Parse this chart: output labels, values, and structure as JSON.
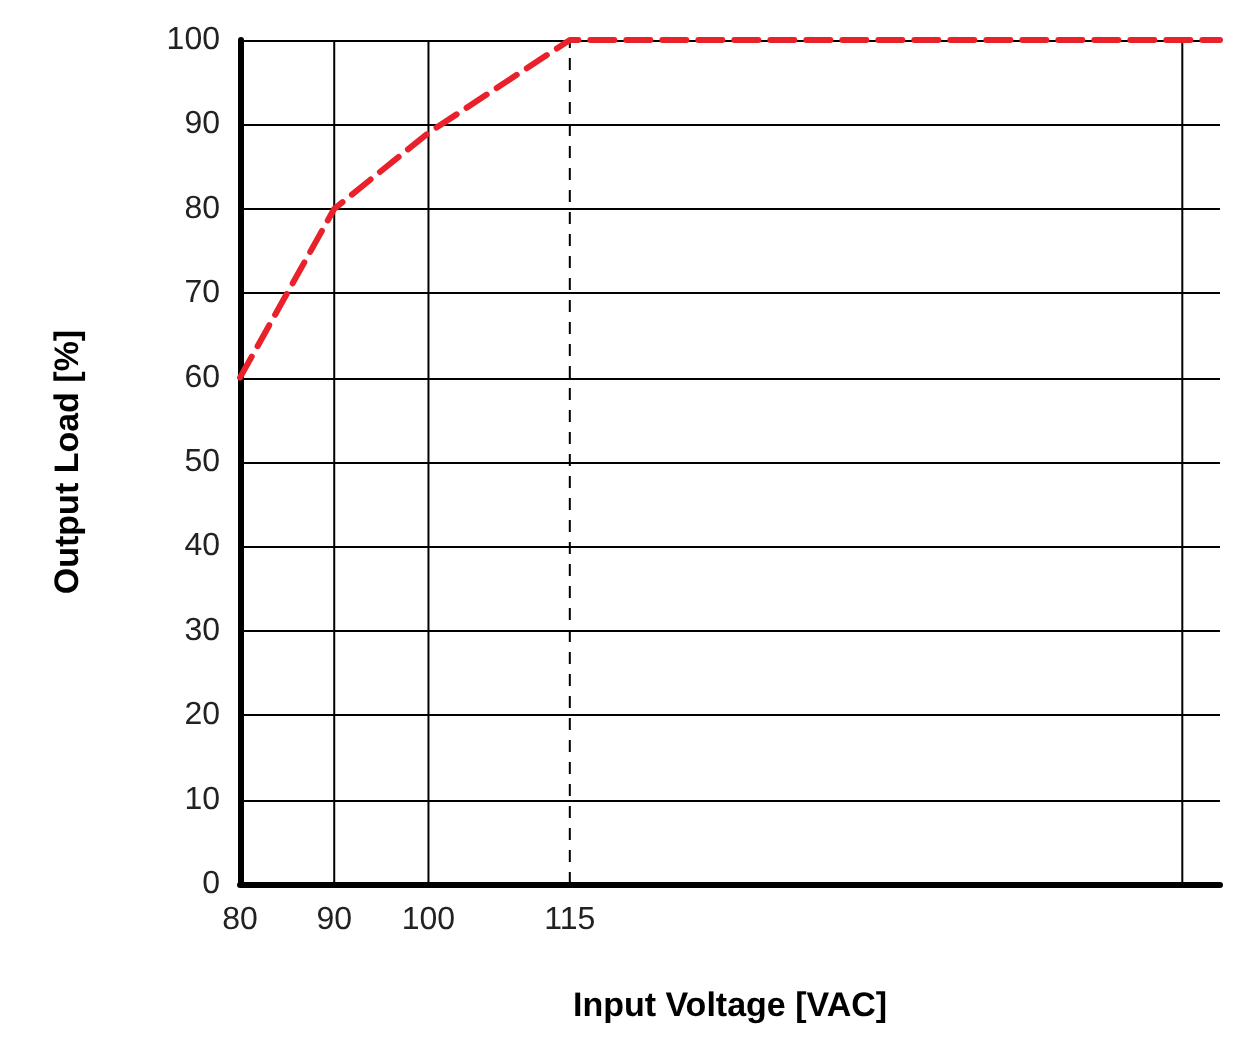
{
  "chart_data": {
    "type": "line",
    "xlabel": "Input Voltage [VAC]",
    "ylabel": "Output Load [%]",
    "x": [
      80,
      90,
      100,
      115,
      184
    ],
    "series": [
      {
        "color": "#e8212a",
        "values": [
          60,
          80,
          89,
          100,
          100
        ]
      }
    ],
    "xlim": [
      80,
      184
    ],
    "xticks": [
      80,
      90,
      100,
      115,
      {
        "value": 180,
        "label": null
      }
    ],
    "ylim": [
      0,
      100
    ],
    "yticks": [
      0,
      10,
      20,
      30,
      40,
      50,
      60,
      70,
      80,
      90,
      100
    ],
    "ref_lines": [
      {
        "axis": "x",
        "value": 115,
        "line_style": "dashed",
        "color": "#000000"
      }
    ],
    "grid": true,
    "marker": "none",
    "line_style": "dashed"
  }
}
